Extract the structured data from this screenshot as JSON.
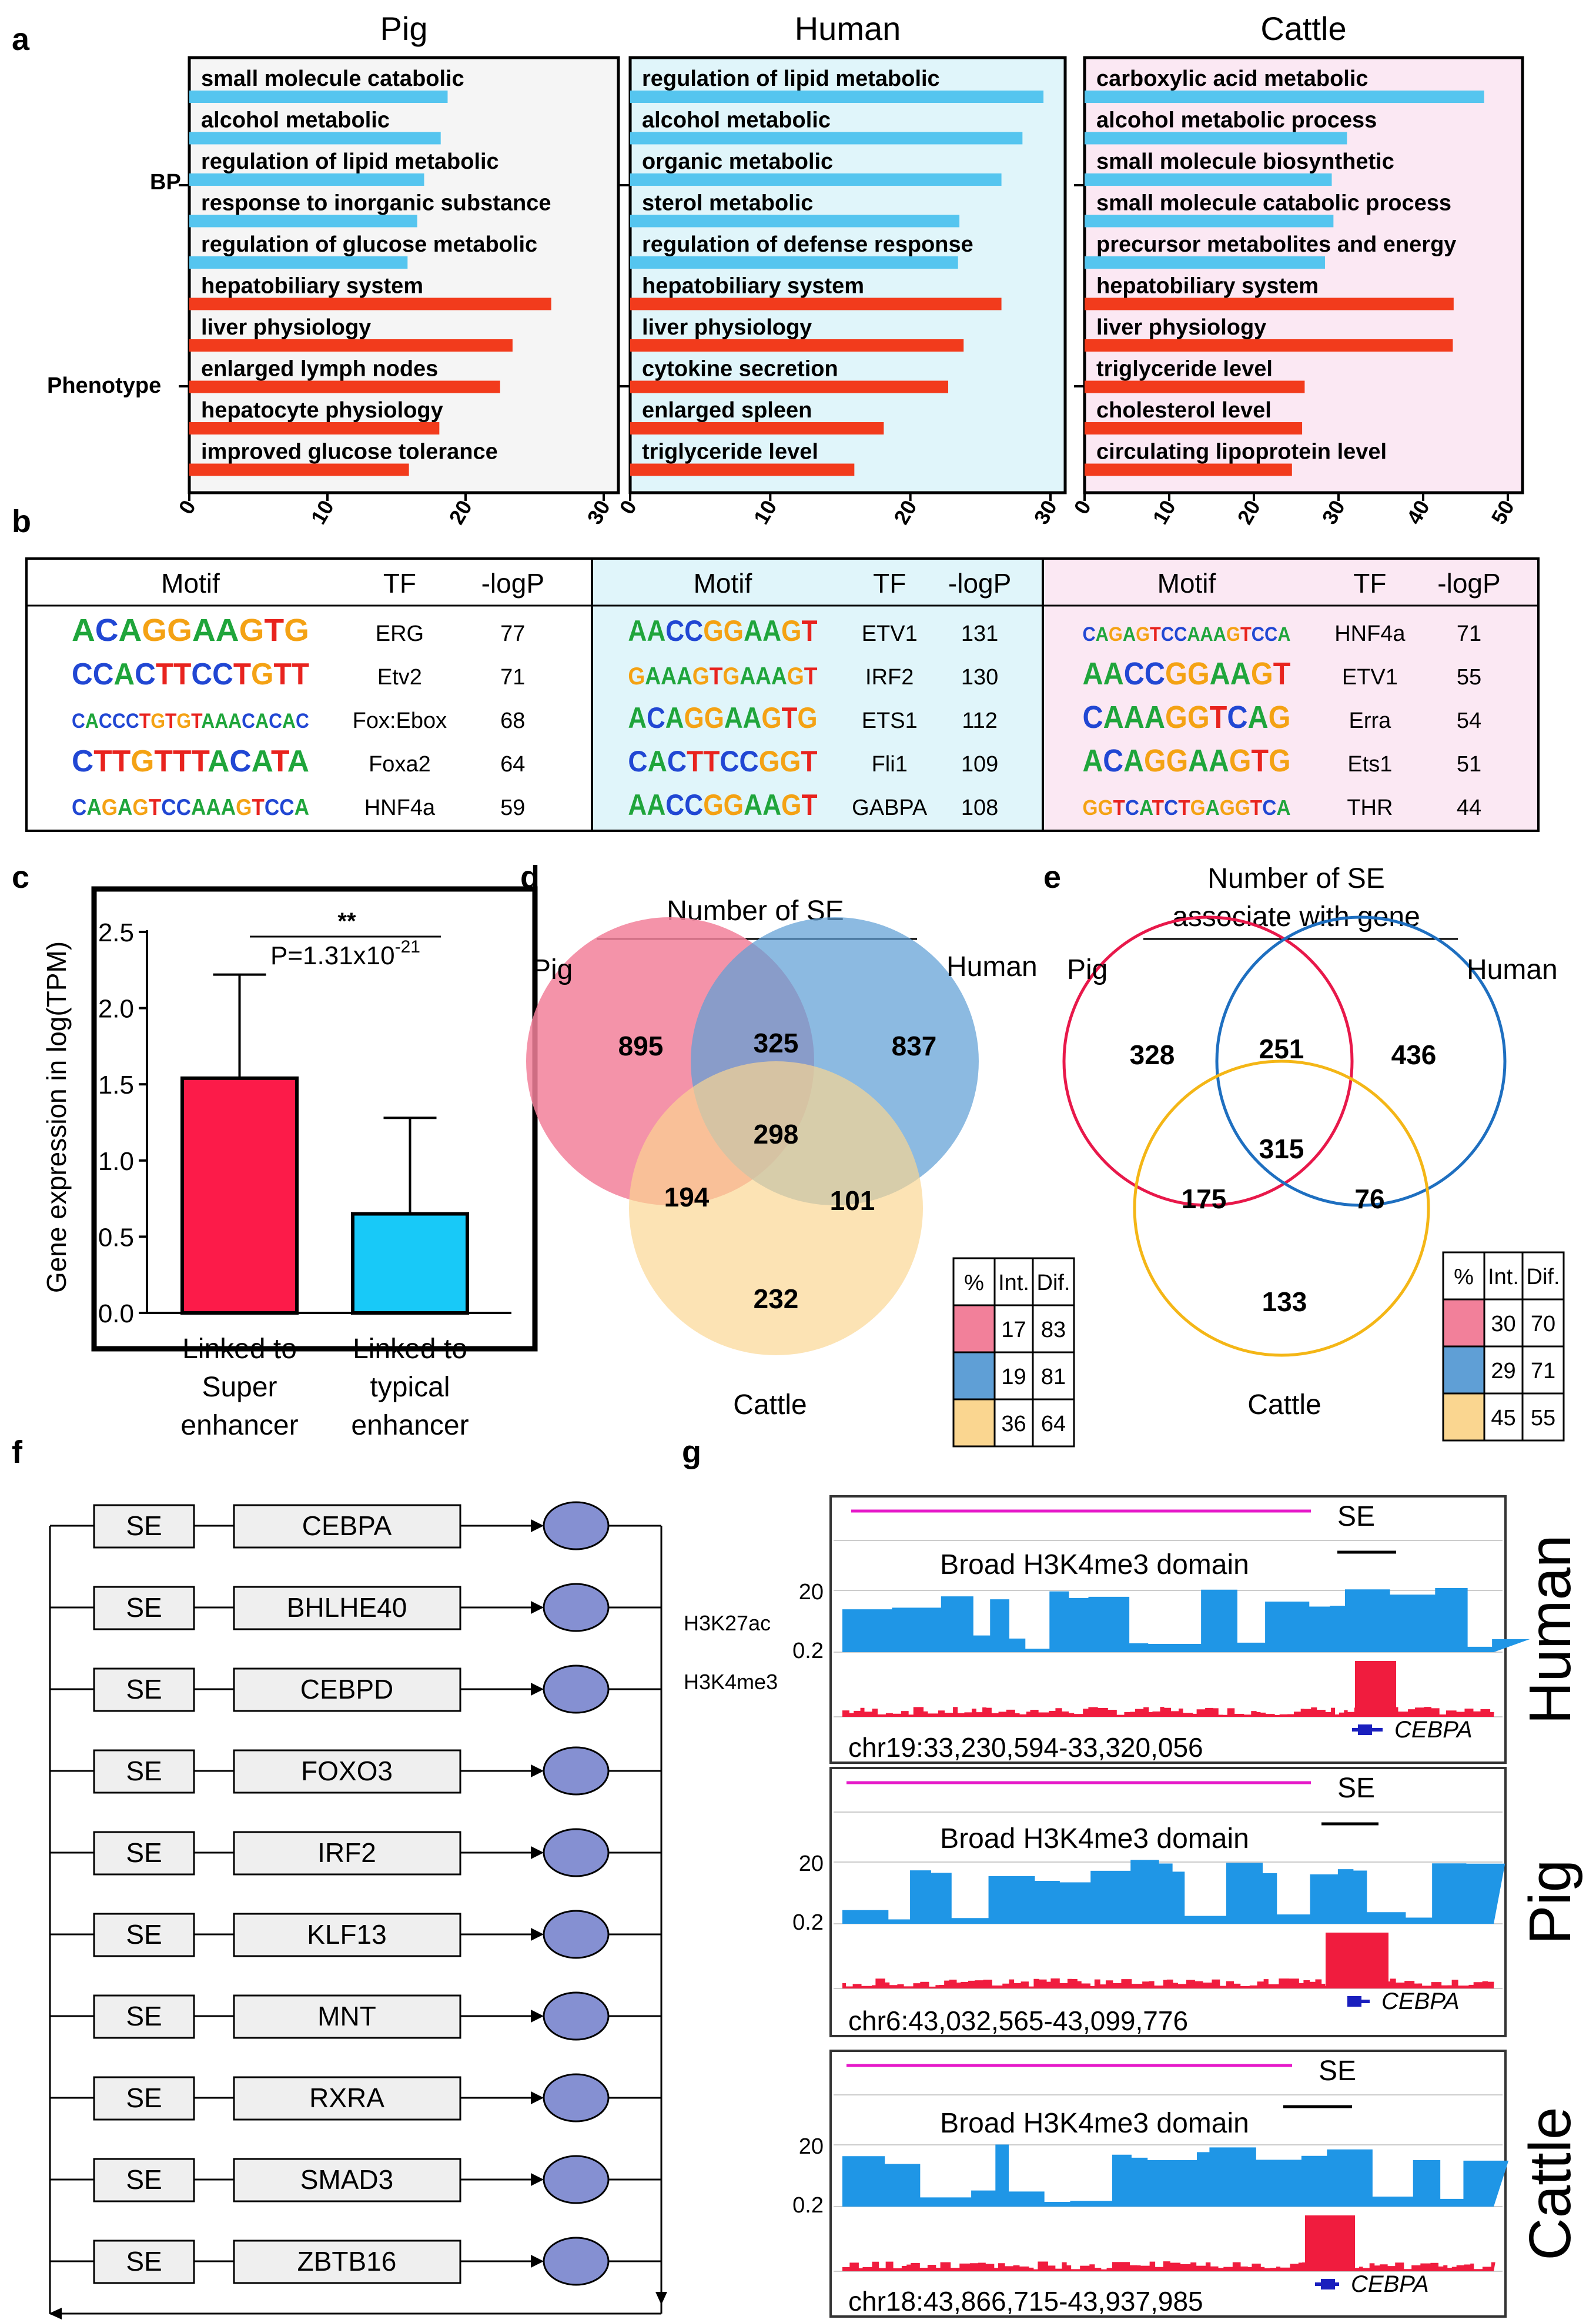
{
  "panel_letters": {
    "a": "a",
    "b": "b",
    "c": "c",
    "d": "d",
    "e": "e",
    "f": "f",
    "g": "g"
  },
  "colors": {
    "bp_bar": "#55c5ef",
    "phen_bar": "#f23b1c",
    "pig_bg": "#f5f5f5",
    "human_bg": "#e0f5fa",
    "cattle_bg": "#fbe8f3",
    "venn_pig": "#f2809a",
    "venn_human": "#5f9fd6",
    "venn_cattle": "#fad690",
    "ring_pig": "#e8184a",
    "ring_human": "#1e6fc0",
    "ring_cattle": "#f4b616",
    "bar_super": "#fc1b49",
    "bar_typical": "#18c9f8",
    "track_h3k27ac": "#1f96e6",
    "track_h3k4me3": "#f01c3e",
    "se_line": "#e619c9",
    "gene": "#1a1fbe",
    "tf_node": "#8590d2"
  },
  "chart_data": [
    {
      "type": "bar",
      "panel": "a",
      "orientation": "horizontal",
      "category_groups": [
        "BP",
        "Phenotype"
      ],
      "facets": [
        {
          "name": "Pig",
          "xlim": [
            0,
            30
          ],
          "ticks": [
            0,
            10,
            20,
            30
          ],
          "categories": [
            "small molecule catabolic",
            "alcohol metabolic",
            "regulation of lipid metabolic",
            "response to inorganic substance",
            "regulation of glucose metabolic",
            "hepatobiliary system",
            "liver physiology",
            "enlarged lymph nodes",
            "hepatocyte physiology",
            "improved glucose tolerance"
          ],
          "values": [
            18.7,
            18.2,
            17,
            16.5,
            15.8,
            26.2,
            23.4,
            22.5,
            18.1,
            15.9
          ],
          "groups": [
            "BP",
            "BP",
            "BP",
            "BP",
            "BP",
            "Phenotype",
            "Phenotype",
            "Phenotype",
            "Phenotype",
            "Phenotype"
          ]
        },
        {
          "name": "Human",
          "xlim": [
            0,
            30
          ],
          "ticks": [
            0,
            10,
            20,
            30
          ],
          "categories": [
            "regulation of lipid metabolic",
            "alcohol metabolic",
            "organic metabolic",
            "sterol metabolic",
            "regulation of defense response",
            "hepatobiliary system",
            "liver physiology",
            "cytokine secretion",
            "enlarged spleen",
            "triglyceride level"
          ],
          "values": [
            29.5,
            28,
            26.5,
            23.5,
            23.4,
            26.5,
            23.8,
            22.7,
            18.1,
            16
          ],
          "groups": [
            "BP",
            "BP",
            "BP",
            "BP",
            "BP",
            "Phenotype",
            "Phenotype",
            "Phenotype",
            "Phenotype",
            "Phenotype"
          ]
        },
        {
          "name": "Cattle",
          "xlim": [
            0,
            50
          ],
          "ticks": [
            0,
            10,
            20,
            30,
            40,
            50
          ],
          "categories": [
            "carboxylic acid metabolic",
            "alcohol metabolic process",
            "small molecule biosynthetic",
            "small molecule catabolic process",
            "precursor metabolites and energy",
            "hepatobiliary system",
            "liver physiology",
            "triglyceride level",
            "cholesterol level",
            "circulating lipoprotein level"
          ],
          "values": [
            47.2,
            31,
            29.2,
            29.4,
            28.4,
            43.6,
            43.5,
            26,
            25.7,
            24.5
          ],
          "groups": [
            "BP",
            "BP",
            "BP",
            "BP",
            "BP",
            "Phenotype",
            "Phenotype",
            "Phenotype",
            "Phenotype",
            "Phenotype"
          ]
        }
      ]
    },
    {
      "type": "table",
      "panel": "b",
      "columns": [
        "Motif",
        "TF",
        "-logP"
      ],
      "tables": [
        {
          "species": "Pig",
          "rows": [
            {
              "motif": "ACAGGAAGTG",
              "tf": "ERG",
              "logp": "77"
            },
            {
              "motif": "CCACTTCCTGTT",
              "tf": "Etv2",
              "logp": "71"
            },
            {
              "motif": "CACCCTGTGTAAACACAC",
              "tf": "Fox:Ebox",
              "logp": "68"
            },
            {
              "motif": "CTTGTTTACATA",
              "tf": "Foxa2",
              "logp": "64"
            },
            {
              "motif": "CAGAGTCCAAAGTCCA",
              "tf": "HNF4a",
              "logp": "59"
            }
          ]
        },
        {
          "species": "Human",
          "rows": [
            {
              "motif": "AACCGGAAGT",
              "tf": "ETV1",
              "logp": "131"
            },
            {
              "motif": "GAAAGTGAAAGT",
              "tf": "IRF2",
              "logp": "130"
            },
            {
              "motif": "ACAGGAAGTG",
              "tf": "ETS1",
              "logp": "112"
            },
            {
              "motif": "CACTTCCGGT",
              "tf": "Fli1",
              "logp": "109"
            },
            {
              "motif": "AACCGGAAGT",
              "tf": "GABPA",
              "logp": "108"
            }
          ]
        },
        {
          "species": "Cattle",
          "rows": [
            {
              "motif": "CAGAGTCCAAAGTCCA",
              "tf": "HNF4a",
              "logp": "71"
            },
            {
              "motif": "AACCGGAAGT",
              "tf": "ETV1",
              "logp": "55"
            },
            {
              "motif": "CAAAGGTCAG",
              "tf": "Erra",
              "logp": "54"
            },
            {
              "motif": "ACAGGAAGTG",
              "tf": "Ets1",
              "logp": "51"
            },
            {
              "motif": "GGTCATCTGAGGTCA",
              "tf": "THR",
              "logp": "44"
            }
          ]
        }
      ]
    },
    {
      "type": "bar",
      "panel": "c",
      "categories": [
        "Linked to Super enhancer",
        "Linked to typical enhancer"
      ],
      "category_lines": [
        [
          "Linked to",
          "Super",
          "enhancer"
        ],
        [
          "Linked to",
          "typical",
          "enhancer"
        ]
      ],
      "values": [
        1.54,
        0.65
      ],
      "error_upper": [
        2.22,
        1.28
      ],
      "ylabel": "Gene expression in log(TPM)",
      "ylim": [
        0,
        2.5
      ],
      "yticks": [
        "0.0",
        "0.5",
        "1.0",
        "1.5",
        "2.0",
        "2.5"
      ],
      "significance": "**",
      "pvalue_base": "P=1.31x10",
      "pvalue_exp": "-21"
    },
    {
      "type": "venn",
      "panel": "d",
      "title": "Number of SE",
      "sets": [
        "Pig",
        "Human",
        "Cattle"
      ],
      "regions": {
        "pig_only": "895",
        "pig_human": "325",
        "human_only": "837",
        "all": "298",
        "pig_cattle": "194",
        "human_cattle": "101",
        "cattle_only": "232"
      },
      "legend": {
        "header": [
          "%",
          "Int.",
          "Dif."
        ],
        "rows": [
          [
            "17",
            "83"
          ],
          [
            "19",
            "81"
          ],
          [
            "36",
            "64"
          ]
        ]
      }
    },
    {
      "type": "venn",
      "panel": "e",
      "title_lines": [
        "Number of SE",
        "associate with gene"
      ],
      "sets": [
        "Pig",
        "Human",
        "Cattle"
      ],
      "regions": {
        "pig_only": "328",
        "pig_human": "251",
        "human_only": "436",
        "all": "315",
        "pig_cattle": "175",
        "human_cattle": "76",
        "cattle_only": "133"
      },
      "legend": {
        "header": [
          "%",
          "Int.",
          "Dif."
        ],
        "rows": [
          [
            "30",
            "70"
          ],
          [
            "29",
            "71"
          ],
          [
            "45",
            "55"
          ]
        ]
      }
    }
  ],
  "panel_f": {
    "se_label": "SE",
    "genes": [
      "CEBPA",
      "BHLHE40",
      "CEBPD",
      "FOXO3",
      "IRF2",
      "KLF13",
      "MNT",
      "RXRA",
      "SMAD3",
      "ZBTB16"
    ]
  },
  "panel_g": {
    "se_label": "SE",
    "domain_label": "Broad H3K4me3 domain",
    "scale_top": "20",
    "scale_bottom": "0.2",
    "track_labels": [
      "H3K27ac",
      "H3K4me3"
    ],
    "gene": "CEBPA",
    "browsers": [
      {
        "species": "Human",
        "coords": "chr19:33,230,594-33,320,056"
      },
      {
        "species": "Pig",
        "coords": "chr6:43,032,565-43,099,776"
      },
      {
        "species": "Cattle",
        "coords": "chr18:43,866,715-43,937,985"
      }
    ]
  }
}
